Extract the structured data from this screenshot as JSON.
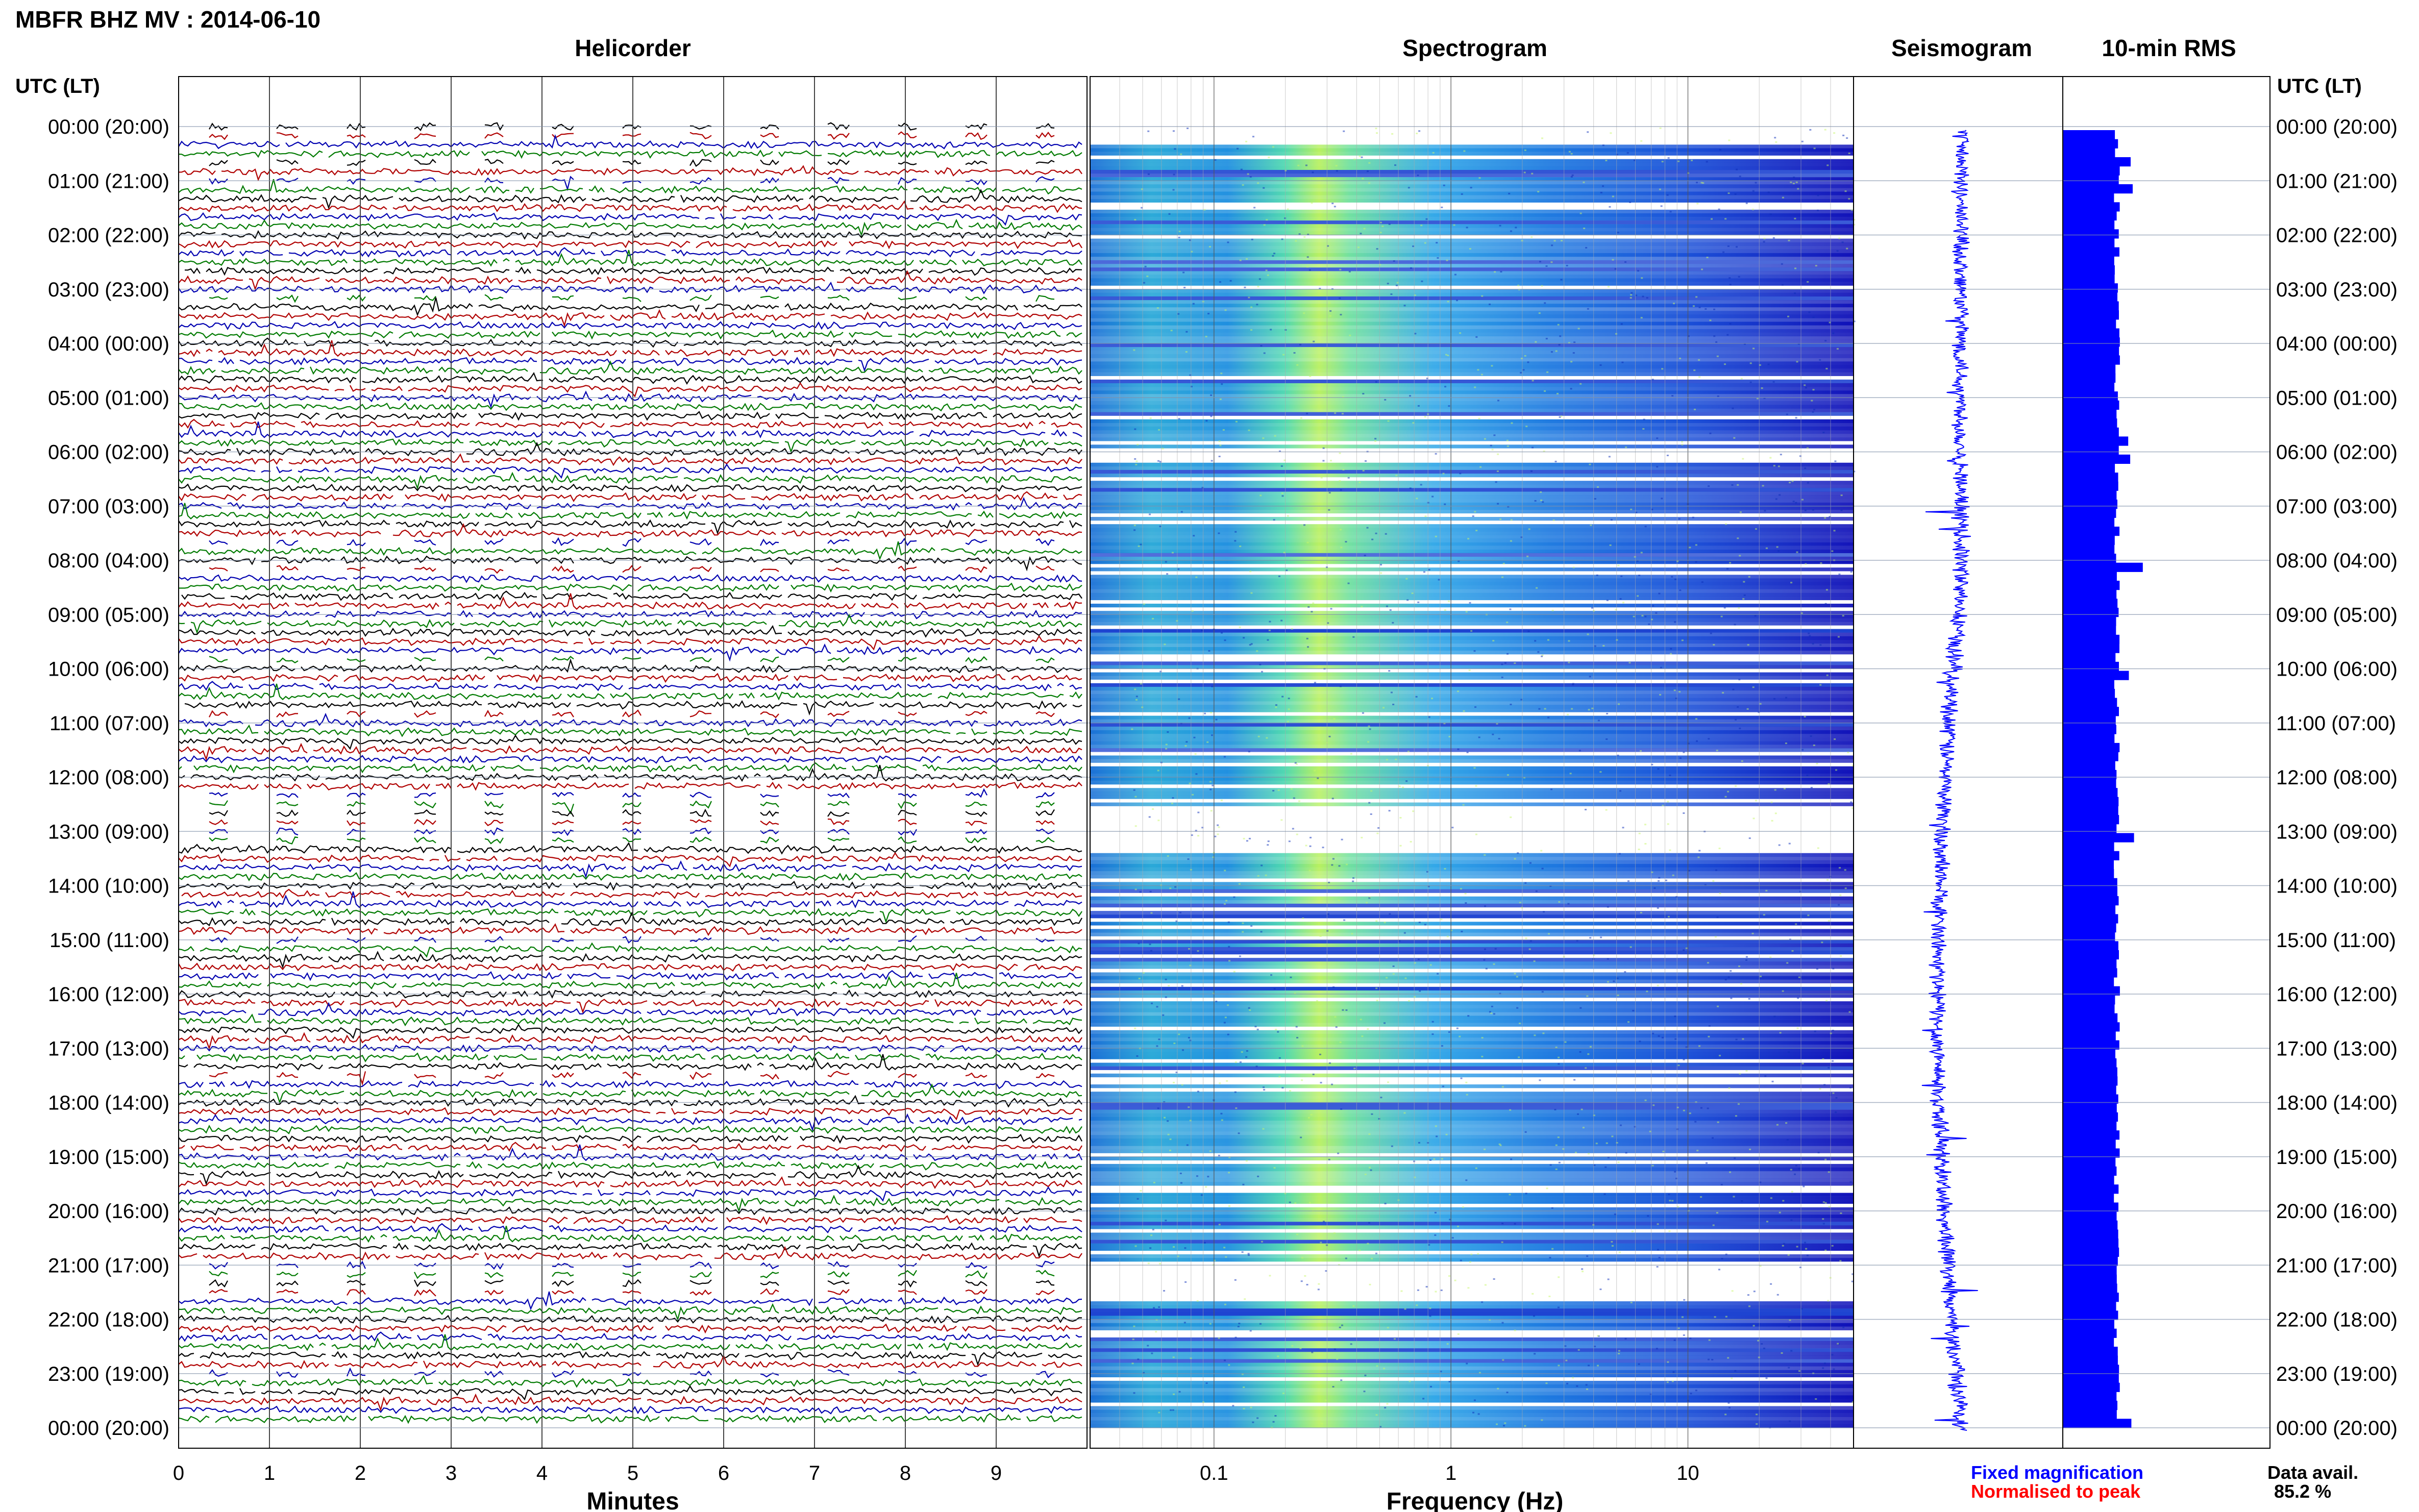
{
  "title": "MBFR BHZ MV : 2014-06-10",
  "panels": {
    "helicorder": "Helicorder",
    "spectrogram": "Spectrogram",
    "seismogram": "Seismogram",
    "rms": "10-min RMS"
  },
  "axis_header": "UTC (LT)",
  "time_labels": [
    "00:00 (20:00)",
    "01:00 (21:00)",
    "02:00 (22:00)",
    "03:00 (23:00)",
    "04:00 (00:00)",
    "05:00 (01:00)",
    "06:00 (02:00)",
    "07:00 (03:00)",
    "08:00 (04:00)",
    "09:00 (05:00)",
    "10:00 (06:00)",
    "11:00 (07:00)",
    "12:00 (08:00)",
    "13:00 (09:00)",
    "14:00 (10:00)",
    "15:00 (11:00)",
    "16:00 (12:00)",
    "17:00 (13:00)",
    "18:00 (14:00)",
    "19:00 (15:00)",
    "20:00 (16:00)",
    "21:00 (17:00)",
    "22:00 (18:00)",
    "23:00 (19:00)",
    "00:00 (20:00)"
  ],
  "helicorder": {
    "xlabel": "Minutes",
    "ticks": [
      "0",
      "1",
      "2",
      "3",
      "4",
      "5",
      "6",
      "7",
      "8",
      "9"
    ],
    "trace_colors": [
      "#000000",
      "#b00000",
      "#0000b0",
      "#007a00"
    ]
  },
  "spectrogram": {
    "xlabel": "Frequency (Hz)",
    "ticks": [
      "0.1",
      "1",
      "10"
    ],
    "scale": "log"
  },
  "legend": {
    "fixed": "Fixed magnification",
    "normalised": "Normalised to peak",
    "fixed_color": "#0000ff",
    "normalised_color": "#ff0000"
  },
  "availability": {
    "label": "Data avail.",
    "value": "85.2 %"
  },
  "chart_data": [
    {
      "type": "line",
      "title": "Helicorder",
      "xlabel": "Minutes",
      "xlim": [
        0,
        10
      ],
      "ylim": [
        "00:00",
        "00:00 (+24h)"
      ],
      "rows": 144,
      "minutes_per_row": 10
    },
    {
      "type": "heatmap",
      "title": "Spectrogram",
      "xlabel": "Frequency (Hz)",
      "xlim": [
        0.03,
        50
      ],
      "xscale": "log",
      "band_peak_hz": [
        0.2,
        0.5
      ],
      "gaps_utc": [
        "00:00-00:20",
        "12:30-13:20",
        "21:00-21:40"
      ]
    },
    {
      "type": "line",
      "title": "Seismogram",
      "color": "#0000ff"
    },
    {
      "type": "bar",
      "title": "10-min RMS",
      "color": "#0000ff",
      "orientation": "horizontal",
      "bins": 144,
      "peaks_utc": [
        "00:30",
        "01:00",
        "05:40",
        "06:00",
        "08:00",
        "10:00",
        "13:00",
        "23:50"
      ]
    }
  ]
}
